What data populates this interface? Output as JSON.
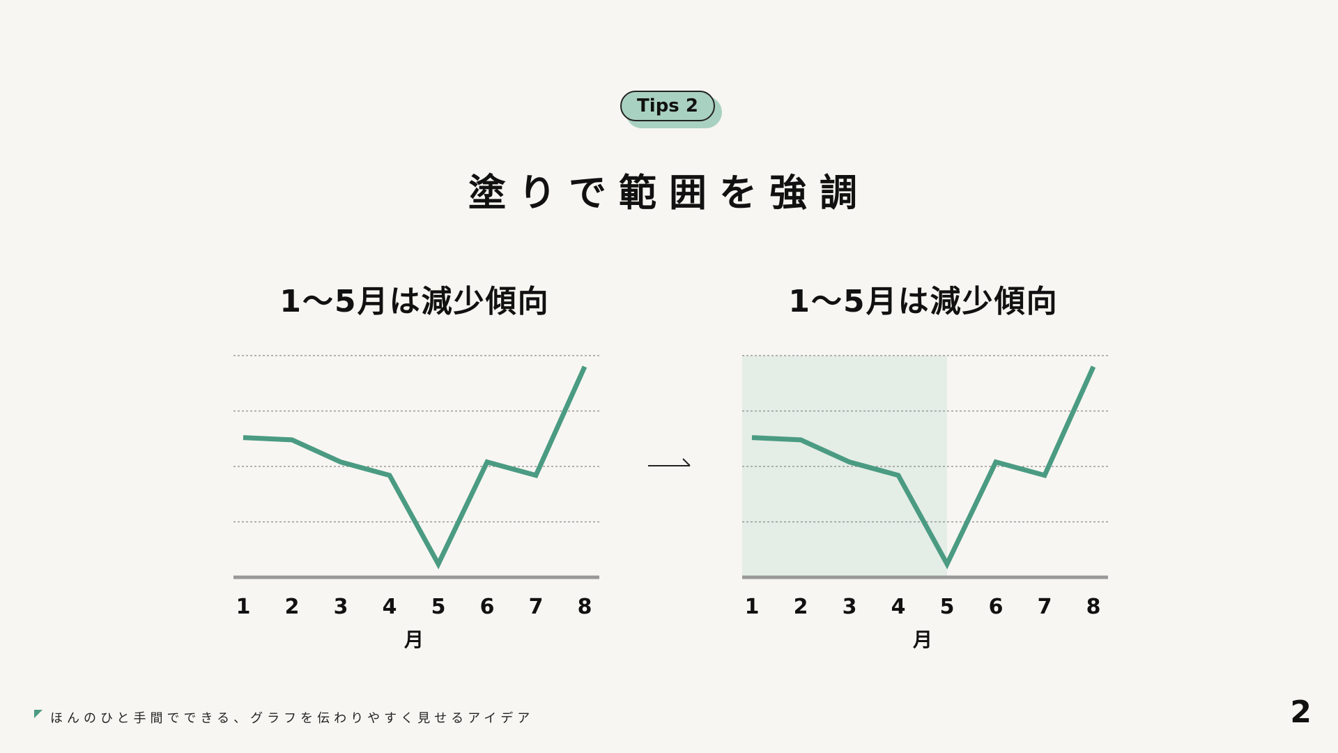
{
  "badge": {
    "label": "Tips 2"
  },
  "slide": {
    "title": "塗りで範囲を強調"
  },
  "colors": {
    "background": "#f8f6f2",
    "line": "#4a9b82",
    "highlight": "#e4ede6",
    "badge": "#a9d1c2",
    "axis": "#999999",
    "grid": "#8a8a8a"
  },
  "chart_data": [
    {
      "type": "line",
      "title": "1～5月は減少傾向",
      "xlabel": "月",
      "ylabel": "",
      "categories": [
        "1",
        "2",
        "3",
        "4",
        "5",
        "6",
        "7",
        "8"
      ],
      "series": [
        {
          "values": [
            63,
            62,
            52,
            46,
            6,
            52,
            46,
            95
          ]
        }
      ],
      "ylim": [
        0,
        100
      ],
      "grid": true,
      "highlight": null
    },
    {
      "type": "line",
      "title": "1～5月は減少傾向",
      "xlabel": "月",
      "ylabel": "",
      "categories": [
        "1",
        "2",
        "3",
        "4",
        "5",
        "6",
        "7",
        "8"
      ],
      "series": [
        {
          "values": [
            63,
            62,
            52,
            46,
            6,
            52,
            46,
            95
          ]
        }
      ],
      "ylim": [
        0,
        100
      ],
      "grid": true,
      "highlight": {
        "from": "1",
        "to": "5"
      }
    }
  ],
  "arrow": {
    "icon": "arrow-right-icon"
  },
  "footer": {
    "text": "ほんのひと手間でできる、グラフを伝わりやすく見せるアイデア",
    "icon": "triangle-mark-icon",
    "page_number": "2"
  }
}
